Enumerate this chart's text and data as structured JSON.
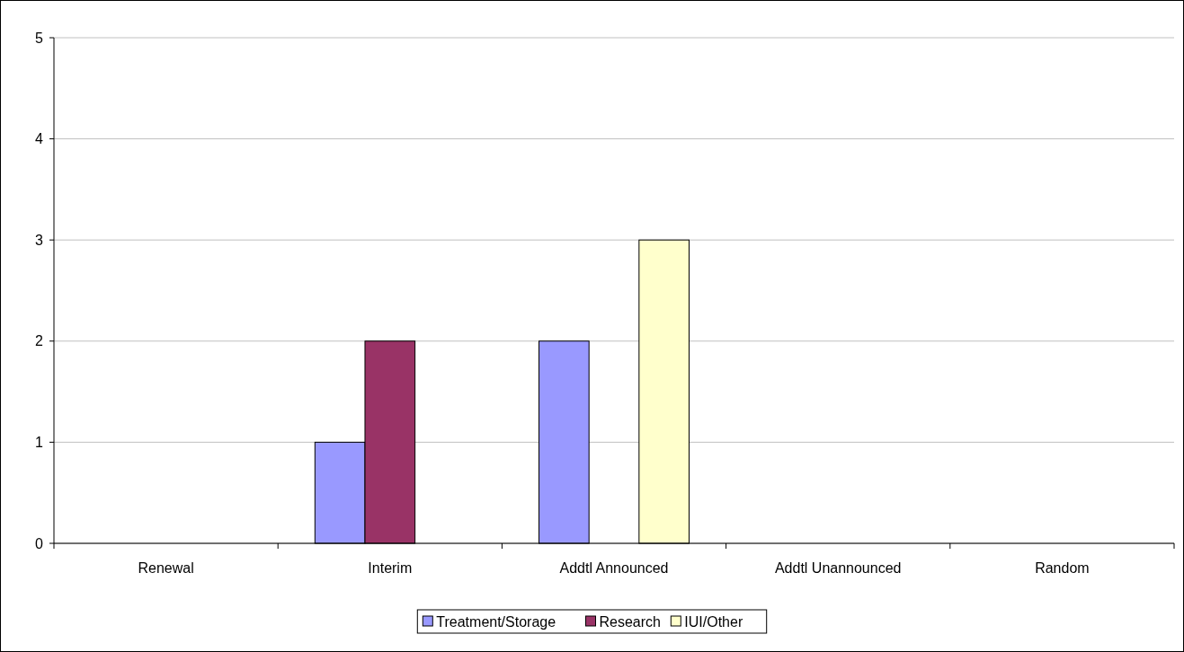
{
  "chart_data": {
    "type": "bar",
    "categories": [
      "Renewal",
      "Interim",
      "Addtl Announced",
      "Addtl Unannounced",
      "Random"
    ],
    "series": [
      {
        "name": "Treatment/Storage",
        "color": "#9999ff",
        "values": [
          0,
          1,
          2,
          0,
          0
        ]
      },
      {
        "name": "Research",
        "color": "#993366",
        "values": [
          0,
          2,
          0,
          0,
          0
        ]
      },
      {
        "name": "IUI/Other",
        "color": "#ffffcc",
        "values": [
          0,
          0,
          3,
          0,
          0
        ]
      }
    ],
    "ylim": [
      0,
      5
    ],
    "yticks": [
      0,
      1,
      2,
      3,
      4,
      5
    ],
    "grid": "y",
    "legend": "bottom"
  }
}
